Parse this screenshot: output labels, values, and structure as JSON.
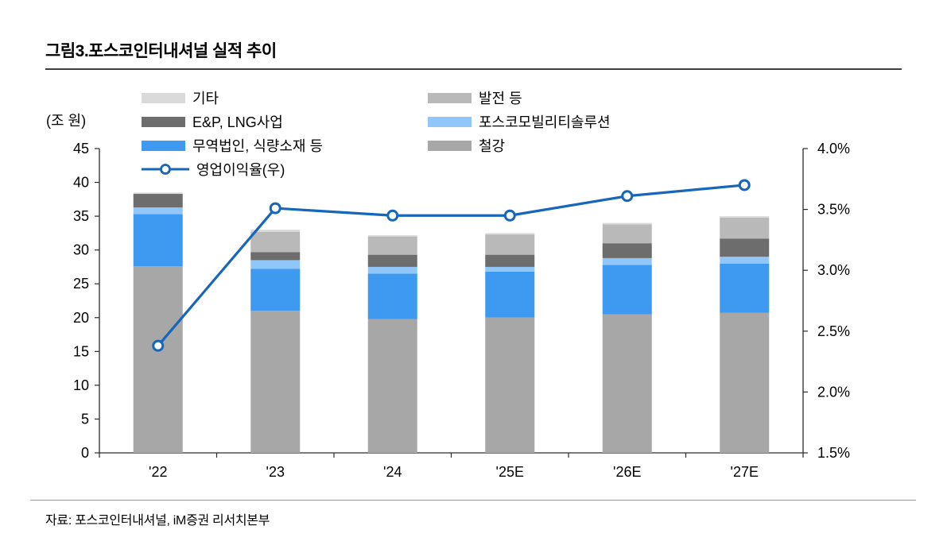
{
  "title": "그림3.포스코인터내셔널 실적 추이",
  "source": "자료: 포스코인터내셔널, iM증권 리서치본부",
  "axis_unit": "(조 원)",
  "chart_data": {
    "type": "bar",
    "stacked": true,
    "title": "그림3.포스코인터내셔널 실적 추이",
    "categories": [
      "'22",
      "'23",
      "'24",
      "'25E",
      "'26E",
      "'27E"
    ],
    "series": [
      {
        "name": "철강",
        "color": "#a7a7a7",
        "values": [
          27.6,
          21.0,
          19.8,
          20.0,
          20.5,
          20.7
        ]
      },
      {
        "name": "무역법인, 식량소재 등",
        "color": "#3e9af0",
        "values": [
          7.7,
          6.2,
          6.7,
          6.8,
          7.3,
          7.3
        ]
      },
      {
        "name": "포스코모빌리티솔루션",
        "color": "#90c7f8",
        "values": [
          1.0,
          1.3,
          1.0,
          0.7,
          1.0,
          1.0
        ]
      },
      {
        "name": "E&P, LNG사업",
        "color": "#6d6d6d",
        "values": [
          2.0,
          1.2,
          1.8,
          1.8,
          2.2,
          2.7
        ]
      },
      {
        "name": "발전 등",
        "color": "#b9b9b9",
        "values": [
          0.0,
          3.0,
          2.7,
          3.0,
          2.8,
          3.1
        ]
      },
      {
        "name": "기타",
        "color": "#dadada",
        "values": [
          0.2,
          0.3,
          0.2,
          0.2,
          0.2,
          0.2
        ]
      }
    ],
    "line_series": {
      "name": "영업이익율(우)",
      "color": "#1666bb",
      "values": [
        2.38,
        3.51,
        3.45,
        3.45,
        3.61,
        3.7
      ]
    },
    "left_axis": {
      "label": "(조 원)",
      "min": 0,
      "max": 45,
      "step": 5,
      "ticks": [
        "0",
        "5",
        "10",
        "15",
        "20",
        "25",
        "30",
        "35",
        "40",
        "45"
      ]
    },
    "right_axis": {
      "min": 1.5,
      "max": 4.0,
      "step": 0.5,
      "ticks": [
        "1.5%",
        "2.0%",
        "2.5%",
        "3.0%",
        "3.5%",
        "4.0%"
      ]
    },
    "legend": [
      {
        "label": "기타",
        "color": "#dadada",
        "type": "box",
        "col": 0,
        "row": 0
      },
      {
        "label": "발전 등",
        "color": "#b9b9b9",
        "type": "box",
        "col": 1,
        "row": 0
      },
      {
        "label": "E&P, LNG사업",
        "color": "#6d6d6d",
        "type": "box",
        "col": 0,
        "row": 1
      },
      {
        "label": "포스코모빌리티솔루션",
        "color": "#90c7f8",
        "type": "box",
        "col": 1,
        "row": 1
      },
      {
        "label": "무역법인, 식량소재 등",
        "color": "#3e9af0",
        "type": "box",
        "col": 0,
        "row": 2
      },
      {
        "label": "철강",
        "color": "#a7a7a7",
        "type": "box",
        "col": 1,
        "row": 2
      },
      {
        "label": "영업이익율(우)",
        "color": "#1666bb",
        "type": "line",
        "col": 0,
        "row": 3
      }
    ]
  }
}
